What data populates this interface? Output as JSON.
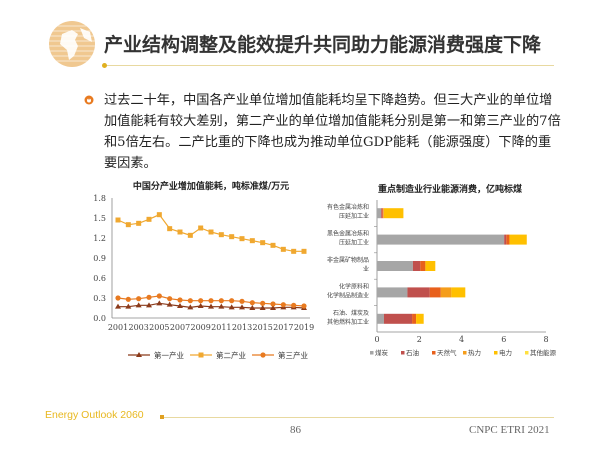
{
  "slide": {
    "title": "产业结构调整及能效提升共同助力能源消费强度下降",
    "paragraph": "过去二十年，中国各产业单位增加值能耗均呈下降趋势。但三大产业的单位增加值能耗有较大差别，第二产业的单位增加值能耗分别是第一和第三产业的7倍和5倍左右。二产比重的下降也成为推动单位GDP能耗（能源强度）下降的重要因素。",
    "icons": {
      "logo": "globe-icon",
      "bullet": "circle-bullet-icon"
    },
    "accent_color": "#e8b820"
  },
  "footer": {
    "left": "Energy Outlook 2060",
    "page": "86",
    "right": "CNPC ETRI 2021"
  },
  "chart_data": [
    {
      "type": "line",
      "title": "中国分产业增加值能耗，吨标准煤/万元",
      "x": [
        2001,
        2002,
        2003,
        2004,
        2005,
        2006,
        2007,
        2008,
        2009,
        2010,
        2011,
        2012,
        2013,
        2014,
        2015,
        2016,
        2017,
        2018,
        2019
      ],
      "xticks": [
        "2001",
        "2003",
        "2005",
        "2007",
        "2009",
        "2011",
        "2013",
        "2015",
        "2017",
        "2019"
      ],
      "yticks": [
        "0.0",
        "0.3",
        "0.6",
        "0.9",
        "1.2",
        "1.5",
        "1.8"
      ],
      "ylim": [
        0,
        1.8
      ],
      "grid": false,
      "legend": "bottom",
      "series": [
        {
          "name": "第一产业",
          "color": "#8b3a1a",
          "marker": "triangle",
          "values": [
            0.17,
            0.17,
            0.19,
            0.19,
            0.22,
            0.2,
            0.18,
            0.16,
            0.18,
            0.17,
            0.17,
            0.16,
            0.16,
            0.15,
            0.15,
            0.15,
            0.16,
            0.16,
            0.15
          ]
        },
        {
          "name": "第二产业",
          "color": "#f0a830",
          "marker": "square",
          "values": [
            1.47,
            1.4,
            1.42,
            1.48,
            1.55,
            1.34,
            1.29,
            1.24,
            1.35,
            1.29,
            1.25,
            1.22,
            1.19,
            1.16,
            1.13,
            1.09,
            1.03,
            1.0,
            1.0
          ]
        },
        {
          "name": "第三产业",
          "color": "#e87a20",
          "marker": "circle",
          "values": [
            0.3,
            0.28,
            0.29,
            0.31,
            0.33,
            0.29,
            0.27,
            0.26,
            0.26,
            0.26,
            0.26,
            0.26,
            0.25,
            0.23,
            0.22,
            0.21,
            0.2,
            0.19,
            0.18
          ]
        }
      ]
    },
    {
      "type": "bar",
      "orientation": "horizontal",
      "stacked": true,
      "title": "重点制造业行业能源消费，亿吨标煤",
      "categories": [
        [
          "有色金属冶炼和",
          "压延加工业"
        ],
        [
          "黑色金属冶炼和",
          "压延加工业"
        ],
        [
          "非金属矿物制品",
          "业"
        ],
        [
          "化学原料和",
          "化学制品制造业"
        ],
        [
          "石油、煤炭及",
          "其他燃料加工业"
        ]
      ],
      "xticks": [
        "0",
        "2",
        "4",
        "6",
        "8"
      ],
      "xlim": [
        0,
        8
      ],
      "legend": "bottom",
      "series": [
        {
          "name": "煤炭",
          "color": "#a6a6a6",
          "values": [
            0.2,
            6.02,
            1.7,
            1.44,
            0.33
          ]
        },
        {
          "name": "石油",
          "color": "#c0504d",
          "values": [
            0.05,
            0.1,
            0.35,
            1.06,
            1.33
          ]
        },
        {
          "name": "天然气",
          "color": "#e8601c",
          "values": [
            0.05,
            0.15,
            0.24,
            0.52,
            0.19
          ]
        },
        {
          "name": "热力",
          "color": "#f59d1a",
          "values": [
            0.02,
            0.0,
            0.0,
            0.5,
            0.0
          ]
        },
        {
          "name": "电力",
          "color": "#ffc000",
          "values": [
            0.93,
            0.82,
            0.47,
            0.66,
            0.36
          ]
        },
        {
          "name": "其他能源",
          "color": "#ffe040",
          "values": [
            0,
            0,
            0,
            0,
            0
          ]
        }
      ]
    }
  ]
}
